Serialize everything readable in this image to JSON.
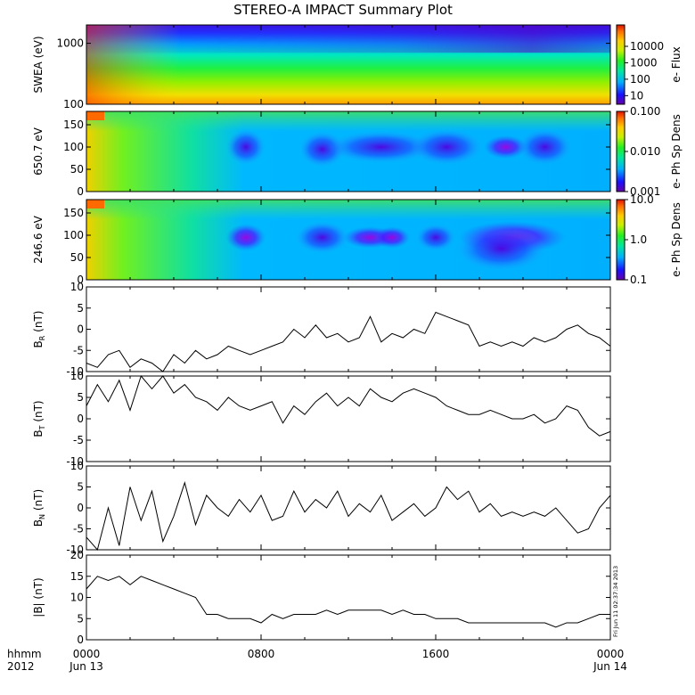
{
  "title": "STEREO-A IMPACT Summary Plot",
  "time_axis": {
    "corner_top": "hhmm",
    "corner_bottom": "2012",
    "ticks": [
      {
        "hour": 0,
        "top": "0000",
        "bottom": "Jun 13"
      },
      {
        "hour": 8,
        "top": "0800",
        "bottom": ""
      },
      {
        "hour": 16,
        "top": "1600",
        "bottom": ""
      },
      {
        "hour": 24,
        "top": "0000",
        "bottom": "Jun 14"
      }
    ]
  },
  "stamp": "Fri Jun 11 02:37:34 2013",
  "colors": {
    "line": "#000000",
    "frame": "#000000",
    "background": "#ffffff"
  },
  "chart_data": [
    {
      "type": "heatmap",
      "ylabel": "SWEA (eV)",
      "ylog": true,
      "ylim": [
        100,
        2000
      ],
      "yticks": [
        100,
        1000
      ],
      "ytick_labels": [
        "100",
        "1000"
      ],
      "colorbar": {
        "label": "e- Flux",
        "log": true,
        "range": [
          3,
          200000
        ],
        "ticks": [
          10,
          100,
          1000,
          10000
        ],
        "tick_labels": [
          "10",
          "100",
          "1000",
          "10000"
        ]
      }
    },
    {
      "type": "heatmap",
      "ylabel": "650.7 eV",
      "ylim": [
        0,
        180
      ],
      "yticks": [
        0,
        50,
        100,
        150
      ],
      "colorbar": {
        "label": "e- Ph Sp Dens",
        "log": true,
        "range": [
          0.001,
          0.1
        ],
        "ticks": [
          0.001,
          0.01,
          0.1
        ],
        "tick_labels": [
          "0.001",
          "0.010",
          "0.100"
        ]
      }
    },
    {
      "type": "heatmap",
      "ylabel": "246.6 eV",
      "ylim": [
        0,
        180
      ],
      "yticks": [
        0,
        50,
        100,
        150
      ],
      "colorbar": {
        "label": "e- Ph Sp Dens",
        "log": true,
        "range": [
          0.1,
          10
        ],
        "ticks": [
          0.1,
          1,
          10
        ],
        "tick_labels": [
          "0.1",
          "1.0",
          "10.0"
        ]
      }
    },
    {
      "type": "line",
      "ylabel_main": "B",
      "ylabel_sub": "R",
      "ylabel_unit": " (nT)",
      "ylim": [
        -10,
        10
      ],
      "yticks": [
        -10,
        -5,
        0,
        5,
        10
      ],
      "x_hours": [
        0,
        0.5,
        1,
        1.5,
        2,
        2.5,
        3,
        3.5,
        4,
        4.5,
        5,
        5.5,
        6,
        6.5,
        7,
        7.5,
        8,
        8.5,
        9,
        9.5,
        10,
        10.5,
        11,
        11.5,
        12,
        12.5,
        13,
        13.5,
        14,
        14.5,
        15,
        15.5,
        16,
        16.5,
        17,
        17.5,
        18,
        18.5,
        19,
        19.5,
        20,
        20.5,
        21,
        21.5,
        22,
        22.5,
        23,
        23.5,
        24
      ],
      "values": [
        -8,
        -9,
        -6,
        -5,
        -9,
        -7,
        -8,
        -10,
        -6,
        -8,
        -5,
        -7,
        -6,
        -4,
        -5,
        -6,
        -5,
        -4,
        -3,
        0,
        -2,
        1,
        -2,
        -1,
        -3,
        -2,
        3,
        -3,
        -1,
        -2,
        0,
        -1,
        4,
        3,
        2,
        1,
        -4,
        -3,
        -4,
        -3,
        -4,
        -2,
        -3,
        -2,
        0,
        1,
        -1,
        -2,
        -4
      ]
    },
    {
      "type": "line",
      "ylabel_main": "B",
      "ylabel_sub": "T",
      "ylabel_unit": " (nT)",
      "ylim": [
        -10,
        10
      ],
      "yticks": [
        -10,
        -5,
        0,
        5,
        10
      ],
      "x_hours": [
        0,
        0.5,
        1,
        1.5,
        2,
        2.5,
        3,
        3.5,
        4,
        4.5,
        5,
        5.5,
        6,
        6.5,
        7,
        7.5,
        8,
        8.5,
        9,
        9.5,
        10,
        10.5,
        11,
        11.5,
        12,
        12.5,
        13,
        13.5,
        14,
        14.5,
        15,
        15.5,
        16,
        16.5,
        17,
        17.5,
        18,
        18.5,
        19,
        19.5,
        20,
        20.5,
        21,
        21.5,
        22,
        22.5,
        23,
        23.5,
        24
      ],
      "values": [
        3,
        8,
        4,
        9,
        2,
        10,
        7,
        10,
        6,
        8,
        5,
        4,
        2,
        5,
        3,
        2,
        3,
        4,
        -1,
        3,
        1,
        4,
        6,
        3,
        5,
        3,
        7,
        5,
        4,
        6,
        7,
        6,
        5,
        3,
        2,
        1,
        1,
        2,
        1,
        0,
        0,
        1,
        -1,
        0,
        3,
        2,
        -2,
        -4,
        -3
      ]
    },
    {
      "type": "line",
      "ylabel_main": "B",
      "ylabel_sub": "N",
      "ylabel_unit": " (nT)",
      "ylim": [
        -10,
        10
      ],
      "yticks": [
        -10,
        -5,
        0,
        5,
        10
      ],
      "x_hours": [
        0,
        0.5,
        1,
        1.5,
        2,
        2.5,
        3,
        3.5,
        4,
        4.5,
        5,
        5.5,
        6,
        6.5,
        7,
        7.5,
        8,
        8.5,
        9,
        9.5,
        10,
        10.5,
        11,
        11.5,
        12,
        12.5,
        13,
        13.5,
        14,
        14.5,
        15,
        15.5,
        16,
        16.5,
        17,
        17.5,
        18,
        18.5,
        19,
        19.5,
        20,
        20.5,
        21,
        21.5,
        22,
        22.5,
        23,
        23.5,
        24
      ],
      "values": [
        -7,
        -10,
        0,
        -9,
        5,
        -3,
        4,
        -8,
        -2,
        6,
        -4,
        3,
        0,
        -2,
        2,
        -1,
        3,
        -3,
        -2,
        4,
        -1,
        2,
        0,
        4,
        -2,
        1,
        -1,
        3,
        -3,
        -1,
        1,
        -2,
        0,
        5,
        2,
        4,
        -1,
        1,
        -2,
        -1,
        -2,
        -1,
        -2,
        0,
        -3,
        -6,
        -5,
        0,
        3
      ]
    },
    {
      "type": "line",
      "ylabel": "|B| (nT)",
      "ylim": [
        0,
        20
      ],
      "yticks": [
        0,
        5,
        10,
        15,
        20
      ],
      "x_hours": [
        0,
        0.5,
        1,
        1.5,
        2,
        2.5,
        3,
        3.5,
        4,
        4.5,
        5,
        5.5,
        6,
        6.5,
        7,
        7.5,
        8,
        8.5,
        9,
        9.5,
        10,
        10.5,
        11,
        11.5,
        12,
        12.5,
        13,
        13.5,
        14,
        14.5,
        15,
        15.5,
        16,
        16.5,
        17,
        17.5,
        18,
        18.5,
        19,
        19.5,
        20,
        20.5,
        21,
        21.5,
        22,
        22.5,
        23,
        23.5,
        24
      ],
      "values": [
        12,
        15,
        14,
        15,
        13,
        15,
        14,
        13,
        12,
        11,
        10,
        6,
        6,
        5,
        5,
        5,
        4,
        6,
        5,
        6,
        6,
        6,
        7,
        6,
        7,
        7,
        7,
        7,
        6,
        7,
        6,
        6,
        5,
        5,
        5,
        4,
        4,
        4,
        4,
        4,
        4,
        4,
        4,
        3,
        4,
        4,
        5,
        6,
        6
      ]
    }
  ]
}
